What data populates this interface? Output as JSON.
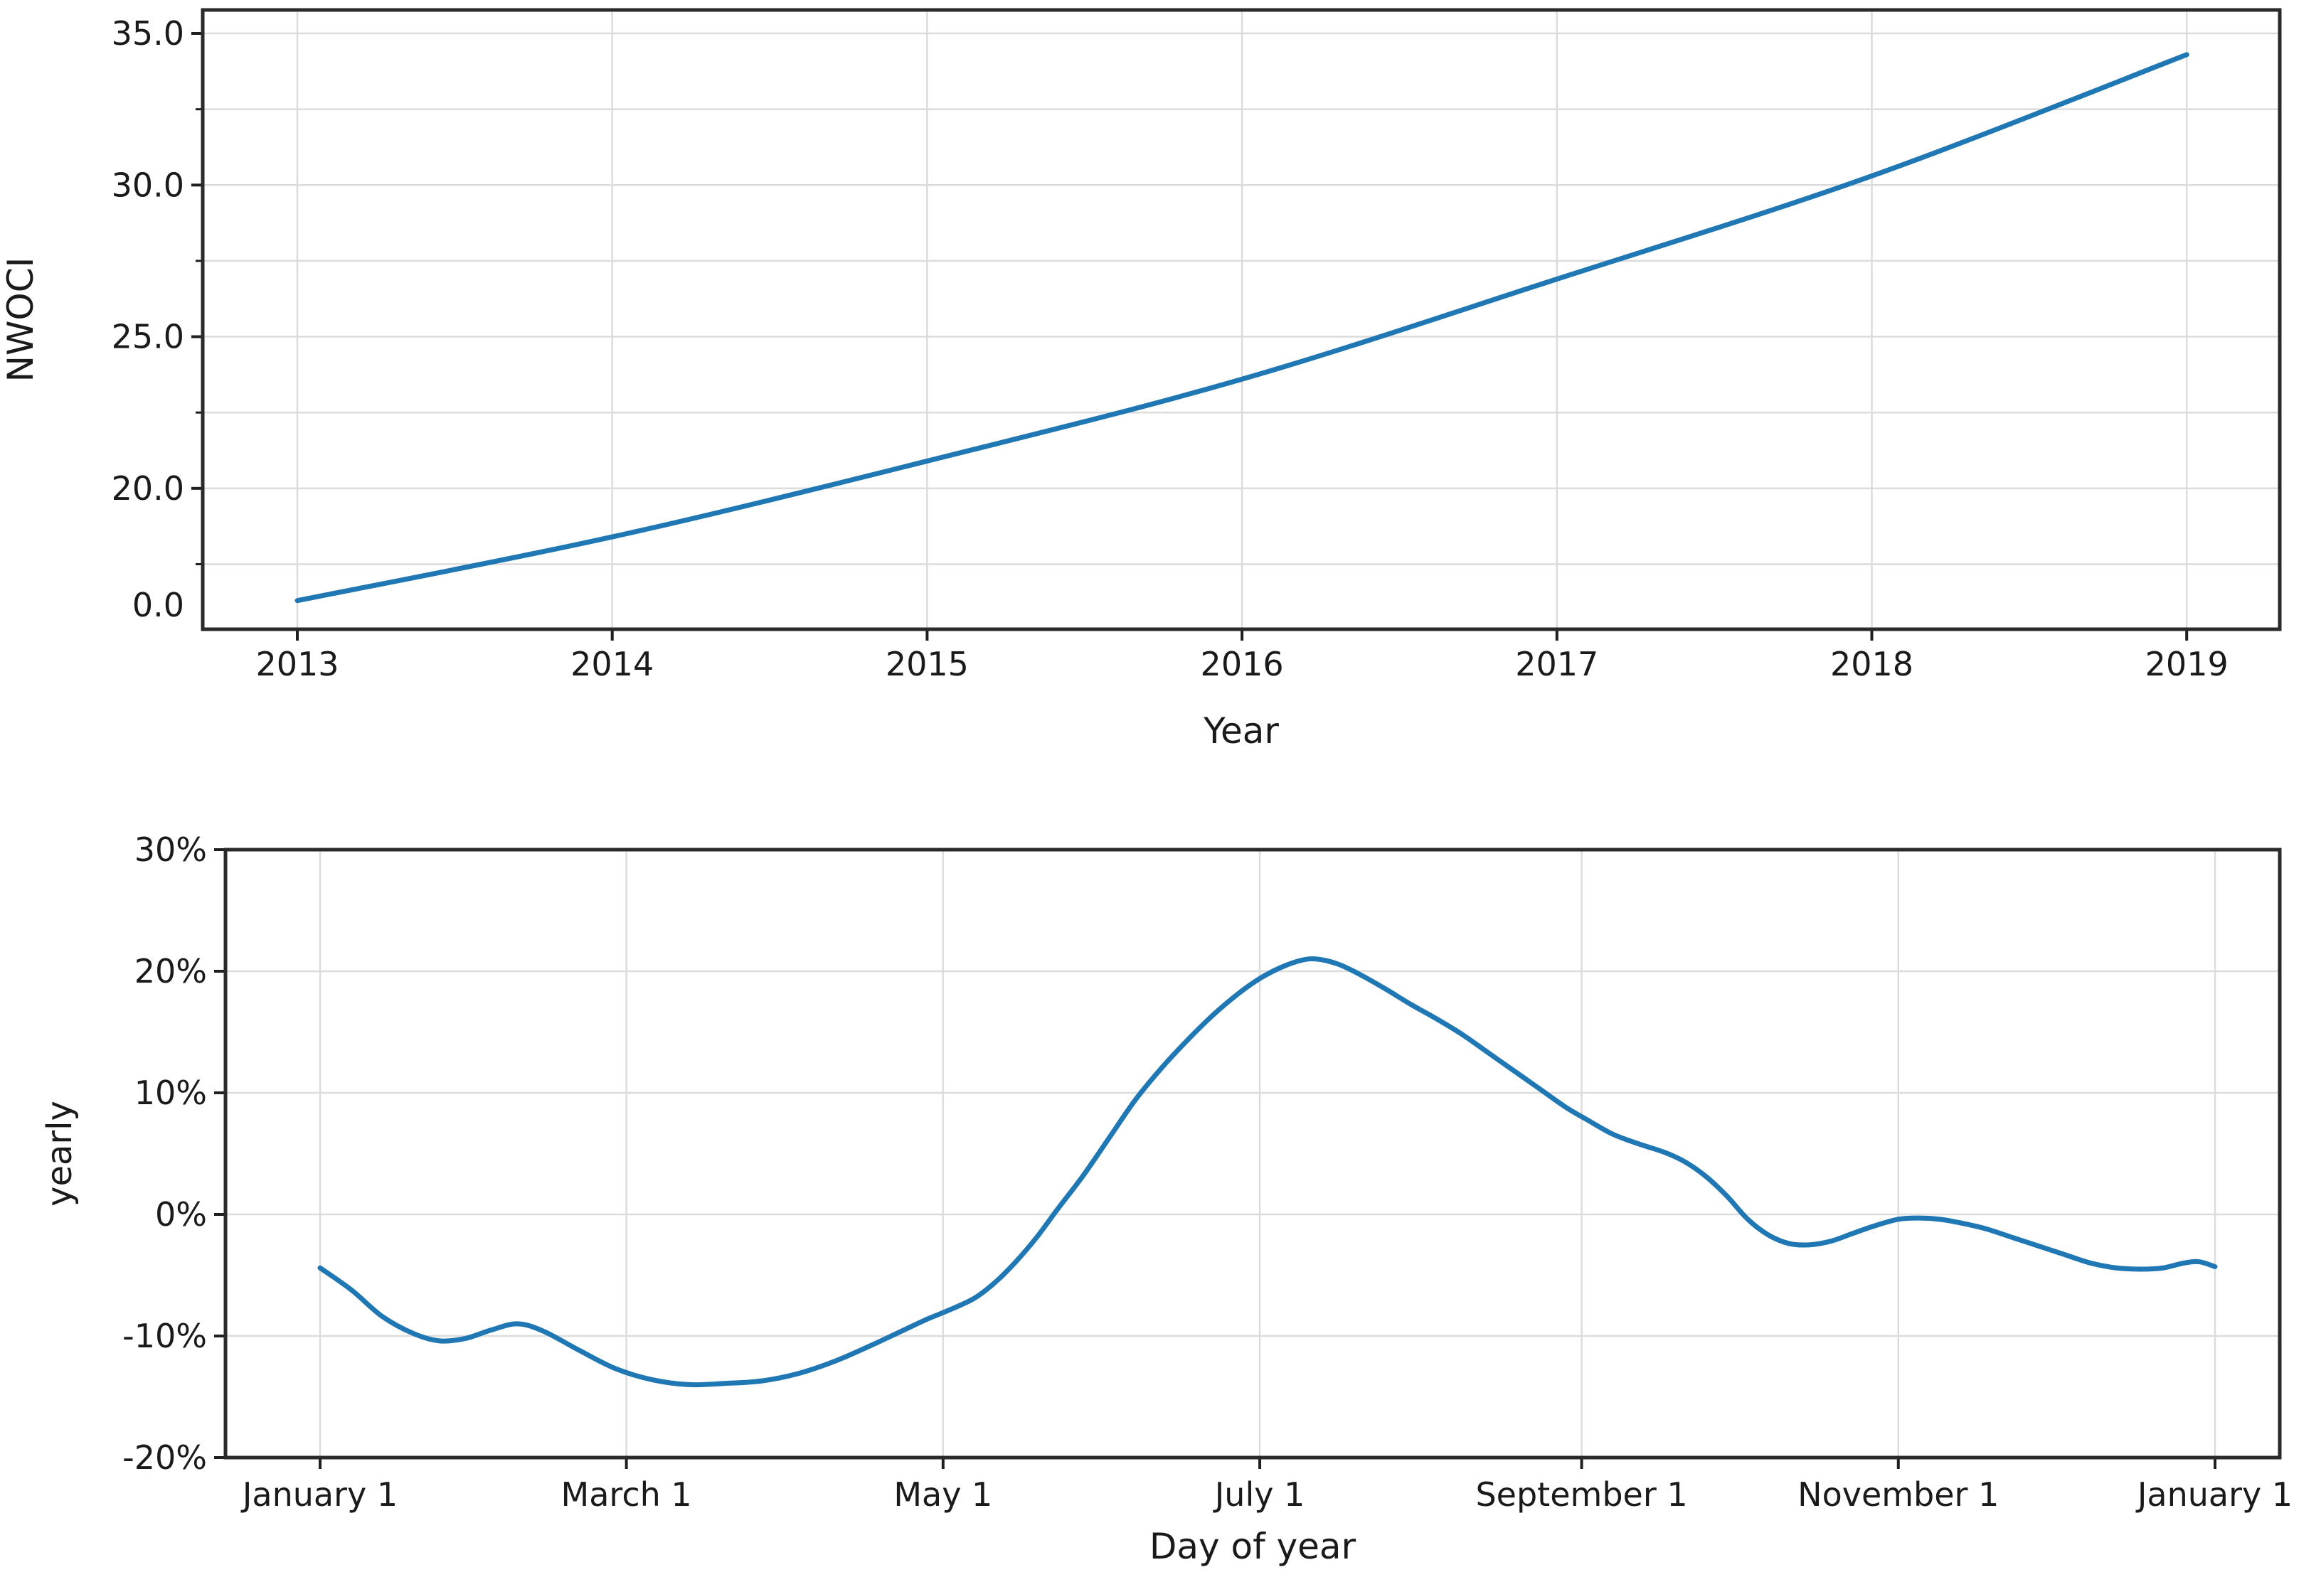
{
  "figure": {
    "background": "#ffffff",
    "description": "Two stacked line charts: NWOCI growth by year (top) and yearly percentage seasonality by day of year (bottom)"
  },
  "colors": {
    "line": "#1f77b4",
    "grid": "#dcdcdc",
    "spine": "#2a2a2a",
    "tick": "#1f1f1f",
    "text": "#1a1a1a",
    "background": "#ffffff"
  },
  "chart_data": [
    {
      "type": "line",
      "title": "",
      "xlabel": "Year",
      "ylabel": "NWOCI",
      "grid": true,
      "legend": false,
      "x_ticks": {
        "values": [
          2013,
          2014,
          2015,
          2016,
          2017,
          2018,
          2019
        ],
        "labels": [
          "2013",
          "2014",
          "2015",
          "2016",
          "2017",
          "2018",
          "2019"
        ]
      },
      "y_ticks": {
        "major": [
          {
            "label": "35.0",
            "value": 35
          },
          {
            "label": "30.0",
            "value": 30
          },
          {
            "label": "25.0",
            "value": 25
          },
          {
            "label": "20.0",
            "value": 20
          },
          {
            "label": "0.0",
            "value": null,
            "note": "anomalous label rendered near the axis bottom with no gridline/tick"
          }
        ],
        "minor_values": [
          32.5,
          27.5,
          22.5,
          17.5
        ]
      },
      "xlim": [
        2012.7,
        2019.3
      ],
      "ylim_display": [
        15.4,
        35.8
      ],
      "series": [
        {
          "name": "NWOCI",
          "color": "#1f77b4",
          "x": [
            2013,
            2014,
            2015,
            2016,
            2017,
            2018,
            2019
          ],
          "y": [
            16.3,
            18.4,
            20.9,
            23.6,
            26.9,
            30.3,
            34.3
          ]
        }
      ]
    },
    {
      "type": "line",
      "title": "",
      "xlabel": "Day of year",
      "ylabel": "yearly",
      "grid": true,
      "legend": false,
      "x_ticks": {
        "values": [
          0,
          59,
          120,
          181,
          243,
          304,
          365
        ],
        "labels": [
          "January 1",
          "March 1",
          "May 1",
          "July 1",
          "September 1",
          "November 1",
          "January 1"
        ]
      },
      "y_ticks": {
        "values": [
          30,
          20,
          10,
          0,
          -10,
          -20
        ],
        "labels": [
          "30%",
          "20%",
          "10%",
          "0%",
          "-10%",
          "-20%"
        ]
      },
      "xlim": [
        0,
        365
      ],
      "ylim": [
        -20,
        30
      ],
      "series": [
        {
          "name": "yearly",
          "color": "#1f77b4",
          "points": [
            [
              0,
              -4.4
            ],
            [
              6,
              -6.2
            ],
            [
              12,
              -8.4
            ],
            [
              18,
              -9.8
            ],
            [
              23,
              -10.4
            ],
            [
              28,
              -10.2
            ],
            [
              33,
              -9.5
            ],
            [
              38,
              -9.0
            ],
            [
              43,
              -9.6
            ],
            [
              50,
              -11.2
            ],
            [
              57,
              -12.7
            ],
            [
              64,
              -13.6
            ],
            [
              71,
              -14.0
            ],
            [
              78,
              -13.9
            ],
            [
              85,
              -13.7
            ],
            [
              92,
              -13.1
            ],
            [
              99,
              -12.1
            ],
            [
              106,
              -10.8
            ],
            [
              112,
              -9.6
            ],
            [
              117,
              -8.6
            ],
            [
              121,
              -7.9
            ],
            [
              126,
              -6.9
            ],
            [
              130,
              -5.6
            ],
            [
              134,
              -3.9
            ],
            [
              138,
              -1.9
            ],
            [
              142,
              0.4
            ],
            [
              147,
              3.2
            ],
            [
              152,
              6.3
            ],
            [
              157,
              9.4
            ],
            [
              162,
              12.0
            ],
            [
              167,
              14.3
            ],
            [
              172,
              16.4
            ],
            [
              177,
              18.2
            ],
            [
              181,
              19.4
            ],
            [
              185,
              20.3
            ],
            [
              189,
              20.9
            ],
            [
              192,
              21.0
            ],
            [
              196,
              20.6
            ],
            [
              200,
              19.8
            ],
            [
              205,
              18.6
            ],
            [
              210,
              17.3
            ],
            [
              215,
              16.1
            ],
            [
              220,
              14.8
            ],
            [
              225,
              13.3
            ],
            [
              230,
              11.8
            ],
            [
              235,
              10.3
            ],
            [
              240,
              8.8
            ],
            [
              244,
              7.8
            ],
            [
              249,
              6.6
            ],
            [
              254,
              5.8
            ],
            [
              259,
              5.1
            ],
            [
              263,
              4.3
            ],
            [
              267,
              3.1
            ],
            [
              271,
              1.5
            ],
            [
              275,
              -0.4
            ],
            [
              279,
              -1.7
            ],
            [
              283,
              -2.4
            ],
            [
              287,
              -2.5
            ],
            [
              291,
              -2.2
            ],
            [
              295,
              -1.6
            ],
            [
              299,
              -1.0
            ],
            [
              304,
              -0.4
            ],
            [
              308,
              -0.3
            ],
            [
              312,
              -0.4
            ],
            [
              316,
              -0.7
            ],
            [
              321,
              -1.2
            ],
            [
              326,
              -1.9
            ],
            [
              331,
              -2.6
            ],
            [
              336,
              -3.3
            ],
            [
              341,
              -4.0
            ],
            [
              346,
              -4.4
            ],
            [
              351,
              -4.5
            ],
            [
              355,
              -4.4
            ],
            [
              359,
              -4.0
            ],
            [
              362,
              -3.9
            ],
            [
              365,
              -4.3
            ]
          ]
        }
      ]
    }
  ]
}
